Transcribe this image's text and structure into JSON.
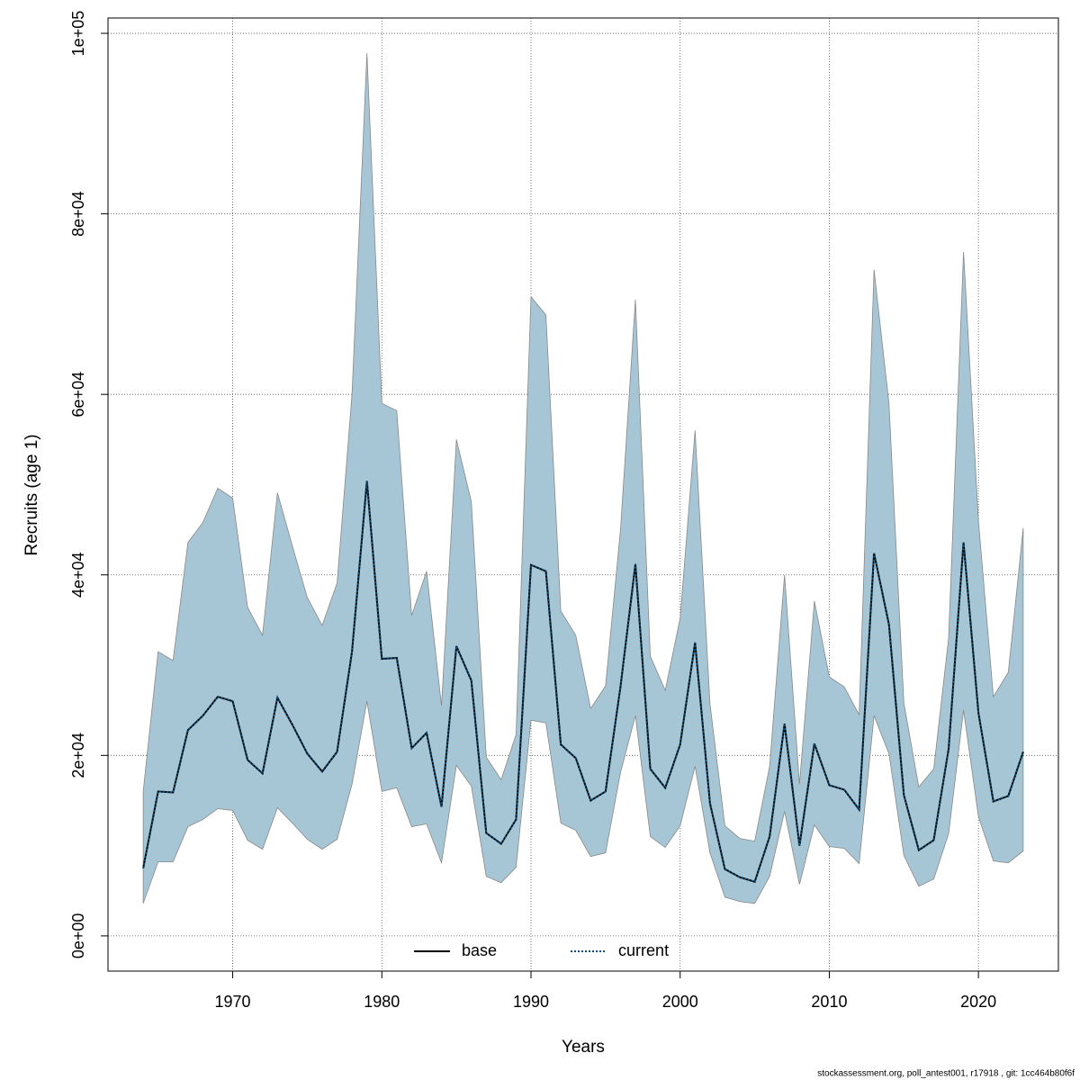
{
  "chart_data": {
    "type": "line",
    "xlabel": "Years",
    "ylabel": "Recruits (age 1)",
    "footer": "stockassessment.org, poll_antest001, r17918 , git: 1cc464b80f6f",
    "x": [
      1964,
      1965,
      1966,
      1967,
      1968,
      1969,
      1970,
      1971,
      1972,
      1973,
      1974,
      1975,
      1976,
      1977,
      1978,
      1979,
      1980,
      1981,
      1982,
      1983,
      1984,
      1985,
      1986,
      1987,
      1988,
      1989,
      1990,
      1991,
      1992,
      1993,
      1994,
      1995,
      1996,
      1997,
      1998,
      1999,
      2000,
      2001,
      2002,
      2003,
      2004,
      2005,
      2006,
      2007,
      2008,
      2009,
      2010,
      2011,
      2012,
      2013,
      2014,
      2015,
      2016,
      2017,
      2018,
      2019,
      2020,
      2021,
      2022,
      2023
    ],
    "series": [
      {
        "name": "base",
        "color": "#000000",
        "dash": "solid",
        "values": [
          7500,
          16000,
          15900,
          22800,
          24400,
          26500,
          26000,
          19500,
          18000,
          26400,
          23400,
          20200,
          18200,
          20400,
          31500,
          50400,
          30700,
          30800,
          20800,
          22500,
          14300,
          32100,
          28300,
          11400,
          10200,
          12900,
          41100,
          40400,
          21200,
          19700,
          15000,
          16000,
          27600,
          41200,
          18500,
          16400,
          21200,
          32500,
          14700,
          7400,
          6500,
          6000,
          11000,
          23500,
          10000,
          21300,
          16700,
          16200,
          14000,
          42400,
          34500,
          15600,
          9500,
          10600,
          20700,
          43600,
          24700,
          14900,
          15500,
          20400
        ]
      },
      {
        "name": "current",
        "color": "#0b4f79",
        "dash": "dotted",
        "values": [
          7500,
          16000,
          15900,
          22800,
          24400,
          26500,
          26000,
          19500,
          18000,
          26400,
          23400,
          20200,
          18200,
          20400,
          31500,
          50400,
          30700,
          30800,
          20800,
          22500,
          14300,
          32100,
          28300,
          11400,
          10200,
          12900,
          41100,
          40400,
          21200,
          19700,
          15000,
          16000,
          27600,
          41200,
          18500,
          16400,
          21200,
          32500,
          14700,
          7400,
          6500,
          6000,
          11000,
          23500,
          10000,
          21300,
          16700,
          16200,
          14000,
          42400,
          34500,
          15600,
          9500,
          10600,
          20700,
          43600,
          24700,
          14900,
          15500,
          20400
        ]
      }
    ],
    "band": {
      "color": "#a6c6d6",
      "upper": [
        16000,
        31500,
        30500,
        43600,
        45800,
        49600,
        48500,
        36400,
        33300,
        49100,
        43200,
        37500,
        34400,
        39100,
        60000,
        97800,
        59000,
        58200,
        35500,
        40400,
        25500,
        55000,
        48100,
        19800,
        17300,
        22300,
        70800,
        68800,
        36000,
        33300,
        25200,
        27700,
        45000,
        70500,
        31000,
        27200,
        35200,
        56000,
        25700,
        12200,
        10800,
        10500,
        18800,
        40000,
        16800,
        37100,
        28700,
        27600,
        24500,
        73800,
        59000,
        25800,
        16500,
        18500,
        33000,
        75800,
        46000,
        26500,
        29200,
        45200
      ],
      "lower": [
        3600,
        8200,
        8200,
        12100,
        12900,
        14100,
        13900,
        10600,
        9600,
        14200,
        12500,
        10700,
        9600,
        10700,
        16800,
        26000,
        16000,
        16400,
        12100,
        12400,
        8100,
        18900,
        16600,
        6600,
        5900,
        7600,
        23900,
        23600,
        12500,
        11700,
        8800,
        9200,
        18100,
        24400,
        11000,
        9800,
        12200,
        18800,
        9200,
        4300,
        3800,
        3600,
        6600,
        13800,
        5700,
        12300,
        9900,
        9700,
        8000,
        24400,
        20200,
        8900,
        5500,
        6300,
        11300,
        25000,
        13200,
        8300,
        8100,
        9400
      ]
    },
    "xlim": [
      1961.64,
      2025.36
    ],
    "xticks": [
      1970,
      1980,
      1990,
      2000,
      2010,
      2020
    ],
    "ylim": [
      -3900,
      101700
    ],
    "yticks": [
      {
        "value": 0,
        "label": "0e+00"
      },
      {
        "value": 20000,
        "label": "2e+04"
      },
      {
        "value": 40000,
        "label": "4e+04"
      },
      {
        "value": 60000,
        "label": "6e+04"
      },
      {
        "value": 80000,
        "label": "8e+04"
      },
      {
        "value": 100000,
        "label": "1e+05"
      }
    ],
    "grid": true,
    "legend": "bottom"
  }
}
